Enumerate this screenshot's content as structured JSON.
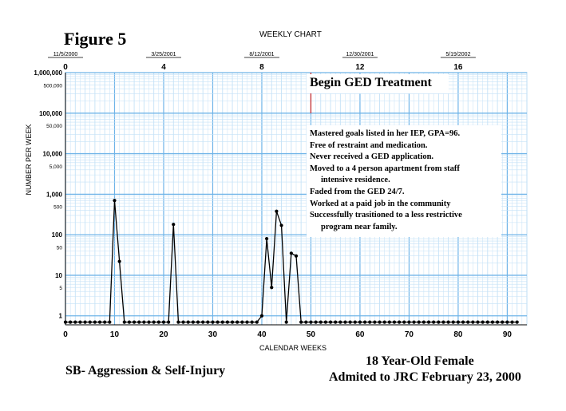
{
  "figure_label": "Figure 5",
  "header": {
    "title": "WEEKLY CHART"
  },
  "footer": {
    "behavior": "SB- Aggression & Self-Injury",
    "subject_line1": "18 Year-Old Female",
    "subject_line2": "Admited to JRC February 23, 2000"
  },
  "notes": [
    {
      "text": "Mastered goals listed in her IEP, GPA=96.",
      "indent": false
    },
    {
      "text": "Free of restraint and medication.",
      "indent": false
    },
    {
      "text": "Never received a GED application.",
      "indent": false
    },
    {
      "text": "Moved to a 4 person apartment from staff",
      "indent": false
    },
    {
      "text": "intensive residence.",
      "indent": true
    },
    {
      "text": "Faded from the GED 24/7.",
      "indent": false
    },
    {
      "text": "Worked at a paid job in the community",
      "indent": false
    },
    {
      "text": "Successfully trasitioned to a less restrictive",
      "indent": false
    },
    {
      "text": "program near family.",
      "indent": true
    }
  ],
  "chart_data": {
    "type": "line",
    "title": "WEEKLY CHART",
    "xlabel": "CALENDAR WEEKS",
    "ylabel": "NUMBER PER WEEK",
    "yscale": "log",
    "ylim": [
      0.6,
      1000000
    ],
    "xlim": [
      0,
      94
    ],
    "y_ticks": [
      "1,000,000",
      "500,000",
      "100,000",
      "50,000",
      "10,000",
      "5,000",
      "1,000",
      "500",
      "100",
      "50",
      "10",
      "5",
      "1"
    ],
    "y_tick_values": [
      1000000,
      500000,
      100000,
      50000,
      10000,
      5000,
      1000,
      500,
      100,
      50,
      10,
      5,
      1
    ],
    "x_ticks": [
      0,
      10,
      20,
      30,
      40,
      50,
      60,
      70,
      80,
      90
    ],
    "top_dates": [
      {
        "week": 0,
        "date": "11/5/2000",
        "month": "0"
      },
      {
        "week": 20,
        "date": "3/25/2001",
        "month": "4"
      },
      {
        "week": 40,
        "date": "8/12/2001",
        "month": "8"
      },
      {
        "week": 60,
        "date": "12/30/2001",
        "month": "12"
      },
      {
        "week": 80,
        "date": "5/19/2002",
        "month": "16"
      }
    ],
    "phase_change": {
      "week": 50,
      "label": "Begin GED Treatment"
    },
    "zero_value": 0.7,
    "series": [
      {
        "x": [
          0,
          1,
          2,
          3,
          4,
          5,
          6,
          7,
          8,
          9,
          10,
          11,
          12,
          13,
          14,
          15,
          16,
          17,
          18,
          19,
          20,
          21,
          22,
          23,
          24,
          25,
          26,
          27,
          28,
          29,
          30,
          31,
          32,
          33,
          34,
          35,
          36,
          37,
          38,
          39,
          40,
          41,
          42,
          43,
          44,
          45,
          46,
          47,
          48,
          49,
          50,
          51,
          52,
          53,
          54,
          55,
          56,
          57,
          58,
          59,
          60,
          61,
          62,
          63,
          64,
          65,
          66,
          67,
          68,
          69,
          70,
          71,
          72,
          73,
          74,
          75,
          76,
          77,
          78,
          79,
          80,
          81,
          82,
          83,
          84,
          85,
          86,
          87,
          88,
          89,
          90,
          91,
          92
        ],
        "y": [
          0.7,
          0.7,
          0.7,
          0.7,
          0.7,
          0.7,
          0.7,
          0.7,
          0.7,
          0.7,
          700,
          22,
          0.7,
          0.7,
          0.7,
          0.7,
          0.7,
          0.7,
          0.7,
          0.7,
          0.7,
          0.7,
          180,
          0.7,
          0.7,
          0.7,
          0.7,
          0.7,
          0.7,
          0.7,
          0.7,
          0.7,
          0.7,
          0.7,
          0.7,
          0.7,
          0.7,
          0.7,
          0.7,
          0.7,
          1,
          80,
          5,
          380,
          170,
          0.7,
          35,
          30,
          0.7,
          0.7,
          0.7,
          0.7,
          0.7,
          0.7,
          0.7,
          0.7,
          0.7,
          0.7,
          0.7,
          0.7,
          0.7,
          0.7,
          0.7,
          0.7,
          0.7,
          0.7,
          0.7,
          0.7,
          0.7,
          0.7,
          0.7,
          0.7,
          0.7,
          0.7,
          0.7,
          0.7,
          0.7,
          0.7,
          0.7,
          0.7,
          0.7,
          0.7,
          0.7,
          0.7,
          0.7,
          0.7,
          0.7,
          0.7,
          0.7,
          0.7,
          0.7,
          0.7,
          0.7
        ]
      }
    ],
    "colors": {
      "grid_major": "#6fb4e8",
      "grid_minor": "#c5e2f7",
      "data": "#000000",
      "phase_line": "#cc2222"
    }
  }
}
